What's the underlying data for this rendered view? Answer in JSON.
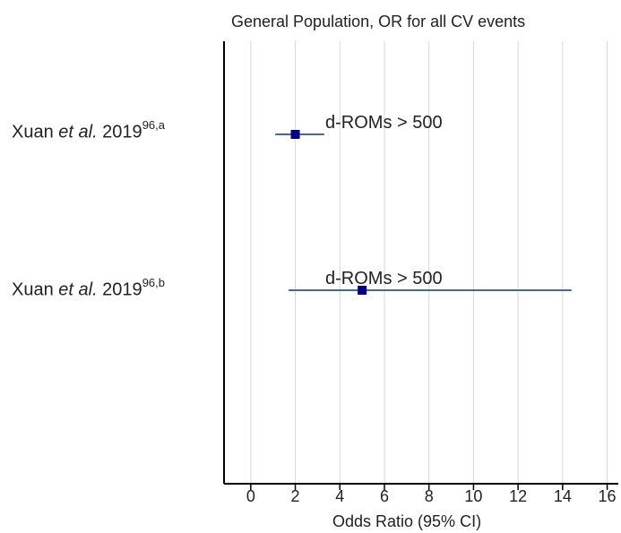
{
  "chart_data": {
    "type": "scatter",
    "subtype": "forest-plot",
    "title": "General Population,  OR for all CV events",
    "xlabel": "Odds Ratio (95% CI)",
    "xlim": [
      -1.2,
      16.5
    ],
    "xticks": [
      0,
      2,
      4,
      6,
      8,
      10,
      12,
      14,
      16
    ],
    "grid": true,
    "marker_color": "#00008b",
    "ci_color": "#4466b0",
    "grid_color": "#d8d8d8",
    "rows": [
      {
        "label_prefix": "Xuan ",
        "label_italic": "et al.",
        "label_year": " 2019",
        "label_sup": "96,a",
        "annotation": "d-ROMs > 500",
        "estimate": 2.0,
        "ci_low": 1.1,
        "ci_high": 3.3
      },
      {
        "label_prefix": "Xuan ",
        "label_italic": "et al.",
        "label_year": " 2019",
        "label_sup": "96,b",
        "annotation": "d-ROMs > 500",
        "estimate": 5.0,
        "ci_low": 1.7,
        "ci_high": 14.4
      }
    ]
  }
}
